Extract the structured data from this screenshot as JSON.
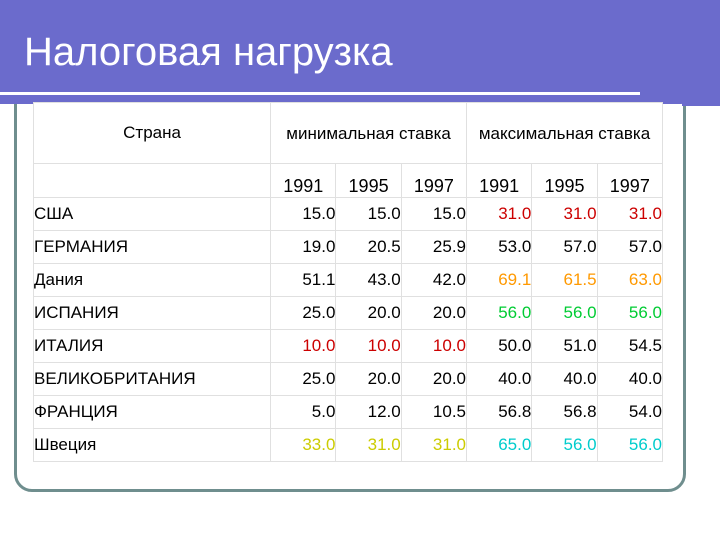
{
  "slide": {
    "title": "Налоговая нагрузка"
  },
  "table": {
    "header": {
      "country": "Страна",
      "min_rate": "минимальная ставка",
      "max_rate": "максимальная ставка",
      "years": [
        "1991",
        "1995",
        "1997",
        "1991",
        "1995",
        "1997"
      ]
    },
    "rows": [
      {
        "country": "США",
        "values": [
          "15.0",
          "15.0",
          "15.0",
          "31.0",
          "31.0",
          "31.0"
        ]
      },
      {
        "country": "ГЕРМАНИЯ",
        "values": [
          "19.0",
          "20.5",
          "25.9",
          "53.0",
          "57.0",
          "57.0"
        ]
      },
      {
        "country": "Дания",
        "values": [
          "51.1",
          "43.0",
          "42.0",
          "69.1",
          "61.5",
          "63.0"
        ]
      },
      {
        "country": "ИСПАНИЯ",
        "values": [
          "25.0",
          "20.0",
          "20.0",
          "56.0",
          "56.0",
          "56.0"
        ]
      },
      {
        "country": "ИТАЛИЯ",
        "values": [
          "10.0",
          "10.0",
          "10.0",
          "50.0",
          "51.0",
          "54.5"
        ]
      },
      {
        "country": "ВЕЛИКОБРИТАНИЯ",
        "values": [
          "25.0",
          "20.0",
          "20.0",
          "40.0",
          "40.0",
          "40.0"
        ]
      },
      {
        "country": "ФРАНЦИЯ",
        "values": [
          "5.0",
          "12.0",
          "10.5",
          "56.8",
          "56.8",
          "54.0"
        ]
      },
      {
        "country": "Швеция",
        "values": [
          "33.0",
          "31.0",
          "31.0",
          "65.0",
          "56.0",
          "56.0"
        ]
      }
    ],
    "row_styles": [
      {
        "min_color": "#000000",
        "min_bold": true,
        "max_color": "#cc0000",
        "max_bold": true
      },
      {
        "min_color": "#000000",
        "min_bold": true,
        "max_color": "#000000",
        "max_bold": true
      },
      {
        "min_color": "#000000",
        "min_bold": false,
        "max_color": "#ff9900",
        "max_bold": false
      },
      {
        "min_color": "#000000",
        "min_bold": true,
        "max_color": "#00cc33",
        "max_bold": true
      },
      {
        "min_color": "#cc0000",
        "min_bold": true,
        "max_color": "#000000",
        "max_bold": true
      },
      {
        "min_color": "#000000",
        "min_bold": true,
        "max_color": "#000000",
        "max_bold": true
      },
      {
        "min_color": "#000000",
        "min_bold": true,
        "max_color": "#000000",
        "max_bold": true
      },
      {
        "min_color": "#cccc00",
        "min_bold": true,
        "max_color": "#00cccc",
        "max_bold": false
      }
    ]
  },
  "colors": {
    "header_band": "#6b6bcc",
    "frame_border": "#6f8e8e"
  }
}
